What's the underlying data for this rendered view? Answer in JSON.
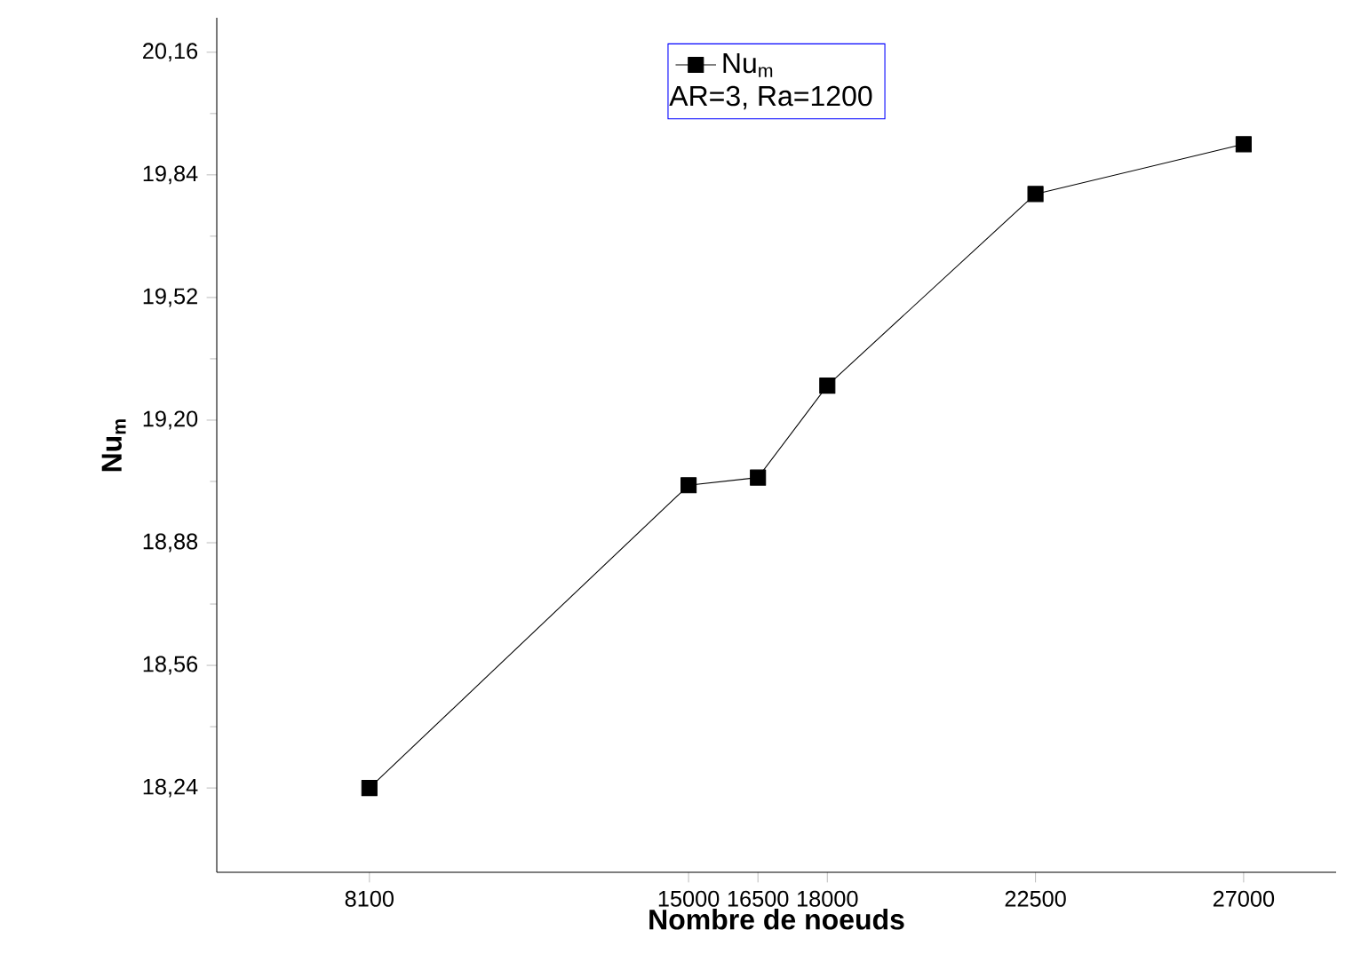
{
  "chart_data": {
    "type": "line",
    "xlabel": "Nombre de noeuds",
    "ylabel": "**Nu**$_{m}$",
    "legend_title": "AR=3, Ra=1200",
    "legend": "top",
    "marker": "square",
    "line_style": "solid",
    "x": [
      8100,
      15000,
      16500,
      18000,
      22500,
      27000
    ],
    "series": [
      {
        "name": "Nu$_{m}$",
        "color": "#000000",
        "values": [
          18.24,
          19.03,
          19.05,
          19.29,
          19.79,
          19.92
        ]
      }
    ],
    "xlim": [
      4800,
      29000
    ],
    "ylim": [
      18.02,
      20.25
    ],
    "xticks": [
      8100,
      15000,
      16500,
      18000,
      22500,
      27000
    ],
    "yticks": [
      {
        "value": 18.24,
        "label": "18,24"
      },
      {
        "value": 18.56,
        "label": "18,56"
      },
      {
        "value": 18.88,
        "label": "18,88"
      },
      {
        "value": 19.2,
        "label": "19,20"
      },
      {
        "value": 19.52,
        "label": "19,52"
      },
      {
        "value": 19.84,
        "label": "19,84"
      },
      {
        "value": 20.16,
        "label": "20,16"
      }
    ]
  }
}
